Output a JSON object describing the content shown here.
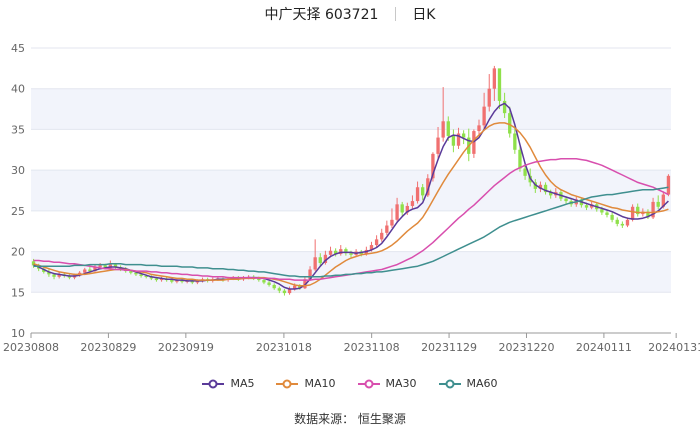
{
  "header": {
    "name": "中广天择",
    "code": "603721",
    "period": "日K"
  },
  "source": {
    "label": "数据来源：",
    "provider": "恒生聚源"
  },
  "chart_data": {
    "type": "candlestick-line",
    "yticks": [
      "10",
      "15",
      "20",
      "25",
      "30",
      "35",
      "40",
      "45"
    ],
    "ylim": [
      10,
      45
    ],
    "xticks": [
      "20230808",
      "20230829",
      "20230919",
      "20231018",
      "20231108",
      "20231129",
      "20231220",
      "20240111",
      "20240131"
    ],
    "xtick_index": [
      0,
      15,
      30,
      49,
      66,
      81,
      96,
      111,
      125
    ],
    "grid": true,
    "legend_position": "bottom",
    "up_color": "#f07070",
    "down_color": "#8fe04a",
    "series": [
      {
        "name": "MA5",
        "color": "#5a3a99",
        "values": [
          18.4,
          18.1,
          17.8,
          17.5,
          17.3,
          17.2,
          17.1,
          17.0,
          17.0,
          17.1,
          17.3,
          17.5,
          17.7,
          17.9,
          18.0,
          18.1,
          18.1,
          18.0,
          17.9,
          17.7,
          17.5,
          17.3,
          17.1,
          16.9,
          16.8,
          16.7,
          16.6,
          16.6,
          16.5,
          16.5,
          16.4,
          16.4,
          16.4,
          16.4,
          16.5,
          16.5,
          16.6,
          16.6,
          16.6,
          16.7,
          16.7,
          16.7,
          16.8,
          16.8,
          16.8,
          16.7,
          16.5,
          16.3,
          16.0,
          15.6,
          15.4,
          15.4,
          15.5,
          15.9,
          16.6,
          17.4,
          18.2,
          18.9,
          19.4,
          19.7,
          19.9,
          19.9,
          19.9,
          19.8,
          19.9,
          20.0,
          20.2,
          20.5,
          21.0,
          21.8,
          22.7,
          23.6,
          24.3,
          24.9,
          25.2,
          25.4,
          26.0,
          27.5,
          29.5,
          31.3,
          32.9,
          34.0,
          34.3,
          34.2,
          33.9,
          33.6,
          33.5,
          34.0,
          35.0,
          36.2,
          37.2,
          37.9,
          38.2,
          37.6,
          35.6,
          33.1,
          30.8,
          29.0,
          28.2,
          27.8,
          27.5,
          27.3,
          27.1,
          26.9,
          26.7,
          26.5,
          26.3,
          26.1,
          25.9,
          25.7,
          25.5,
          25.3,
          25.1,
          24.9,
          24.6,
          24.3,
          24.1,
          24.0,
          24.0,
          24.1,
          24.3,
          24.6,
          25.0,
          25.6,
          26.2
        ]
      },
      {
        "name": "MA10",
        "color": "#e08a3c",
        "values": [
          18.5,
          18.3,
          18.1,
          17.9,
          17.7,
          17.5,
          17.4,
          17.3,
          17.2,
          17.2,
          17.2,
          17.3,
          17.4,
          17.5,
          17.6,
          17.7,
          17.8,
          17.8,
          17.8,
          17.7,
          17.6,
          17.5,
          17.4,
          17.2,
          17.1,
          17.0,
          16.9,
          16.8,
          16.7,
          16.7,
          16.6,
          16.6,
          16.5,
          16.5,
          16.5,
          16.5,
          16.5,
          16.5,
          16.6,
          16.6,
          16.6,
          16.7,
          16.7,
          16.7,
          16.8,
          16.8,
          16.7,
          16.6,
          16.5,
          16.3,
          16.1,
          15.9,
          15.8,
          15.8,
          15.9,
          16.2,
          16.6,
          17.1,
          17.6,
          18.1,
          18.5,
          18.9,
          19.2,
          19.4,
          19.6,
          19.7,
          19.8,
          19.9,
          20.1,
          20.4,
          20.8,
          21.3,
          21.9,
          22.5,
          23.0,
          23.5,
          24.2,
          25.2,
          26.3,
          27.4,
          28.5,
          29.5,
          30.4,
          31.3,
          32.2,
          33.0,
          33.7,
          34.3,
          34.9,
          35.4,
          35.7,
          35.8,
          35.8,
          35.6,
          35.2,
          34.6,
          33.8,
          32.8,
          31.6,
          30.4,
          29.4,
          28.6,
          28.0,
          27.6,
          27.3,
          27.0,
          26.8,
          26.6,
          26.4,
          26.2,
          26.0,
          25.8,
          25.6,
          25.4,
          25.3,
          25.1,
          25.0,
          24.9,
          24.8,
          24.8,
          24.8,
          24.8,
          24.9,
          25.0,
          25.2
        ]
      },
      {
        "name": "MA30",
        "color": "#d84fae",
        "values": [
          18.9,
          18.9,
          18.8,
          18.8,
          18.7,
          18.7,
          18.6,
          18.5,
          18.5,
          18.4,
          18.3,
          18.2,
          18.1,
          18.0,
          17.9,
          17.9,
          17.8,
          17.8,
          17.7,
          17.7,
          17.6,
          17.6,
          17.6,
          17.5,
          17.5,
          17.4,
          17.4,
          17.3,
          17.3,
          17.2,
          17.2,
          17.1,
          17.1,
          17.0,
          17.0,
          16.9,
          16.9,
          16.9,
          16.8,
          16.8,
          16.8,
          16.8,
          16.8,
          16.8,
          16.7,
          16.7,
          16.7,
          16.7,
          16.6,
          16.6,
          16.6,
          16.5,
          16.5,
          16.5,
          16.5,
          16.6,
          16.6,
          16.7,
          16.8,
          16.9,
          17.0,
          17.1,
          17.2,
          17.3,
          17.4,
          17.5,
          17.6,
          17.7,
          17.8,
          18.0,
          18.2,
          18.4,
          18.7,
          19.0,
          19.3,
          19.7,
          20.1,
          20.6,
          21.1,
          21.7,
          22.3,
          22.9,
          23.5,
          24.1,
          24.6,
          25.2,
          25.7,
          26.3,
          26.9,
          27.5,
          28.1,
          28.6,
          29.1,
          29.6,
          30.0,
          30.3,
          30.6,
          30.8,
          31.0,
          31.1,
          31.2,
          31.3,
          31.3,
          31.4,
          31.4,
          31.4,
          31.4,
          31.3,
          31.2,
          31.0,
          30.8,
          30.6,
          30.3,
          30.0,
          29.7,
          29.4,
          29.1,
          28.8,
          28.5,
          28.3,
          28.1,
          27.9,
          27.6,
          27.3,
          27.0
        ]
      },
      {
        "name": "MA60",
        "color": "#3f8f8f",
        "values": [
          18.2,
          18.2,
          18.2,
          18.2,
          18.2,
          18.2,
          18.2,
          18.2,
          18.3,
          18.3,
          18.3,
          18.4,
          18.4,
          18.4,
          18.4,
          18.5,
          18.5,
          18.5,
          18.4,
          18.4,
          18.4,
          18.4,
          18.3,
          18.3,
          18.3,
          18.2,
          18.2,
          18.2,
          18.2,
          18.1,
          18.1,
          18.1,
          18.0,
          18.0,
          18.0,
          17.9,
          17.9,
          17.9,
          17.8,
          17.8,
          17.7,
          17.7,
          17.6,
          17.6,
          17.5,
          17.5,
          17.4,
          17.3,
          17.2,
          17.1,
          17.0,
          17.0,
          16.9,
          16.9,
          16.9,
          16.9,
          16.9,
          17.0,
          17.0,
          17.1,
          17.1,
          17.2,
          17.2,
          17.3,
          17.3,
          17.4,
          17.4,
          17.5,
          17.5,
          17.6,
          17.7,
          17.8,
          17.9,
          18.0,
          18.1,
          18.2,
          18.4,
          18.6,
          18.8,
          19.1,
          19.4,
          19.7,
          20.0,
          20.3,
          20.6,
          20.9,
          21.2,
          21.5,
          21.8,
          22.2,
          22.6,
          23.0,
          23.3,
          23.6,
          23.8,
          24.0,
          24.2,
          24.4,
          24.6,
          24.8,
          25.0,
          25.2,
          25.4,
          25.6,
          25.8,
          26.0,
          26.1,
          26.3,
          26.5,
          26.7,
          26.8,
          26.9,
          27.0,
          27.0,
          27.1,
          27.2,
          27.3,
          27.4,
          27.5,
          27.6,
          27.6,
          27.6,
          27.7,
          27.8,
          27.9
        ]
      }
    ],
    "candles": [
      [
        18.8,
        18.3,
        19.1,
        18.0
      ],
      [
        18.3,
        17.9,
        18.5,
        17.6
      ],
      [
        17.9,
        17.5,
        18.1,
        17.3
      ],
      [
        17.5,
        17.2,
        17.8,
        16.9
      ],
      [
        17.2,
        16.9,
        17.4,
        16.6
      ],
      [
        16.9,
        17.2,
        17.5,
        16.7
      ],
      [
        17.2,
        17.0,
        17.4,
        16.8
      ],
      [
        17.0,
        16.8,
        17.2,
        16.6
      ],
      [
        16.8,
        17.1,
        17.3,
        16.6
      ],
      [
        17.1,
        17.4,
        17.6,
        16.9
      ],
      [
        17.4,
        17.8,
        18.0,
        17.2
      ],
      [
        17.8,
        17.6,
        18.1,
        17.4
      ],
      [
        17.6,
        18.1,
        18.4,
        17.5
      ],
      [
        18.1,
        18.3,
        18.6,
        17.9
      ],
      [
        18.3,
        18.0,
        18.5,
        17.8
      ],
      [
        18.0,
        18.4,
        18.9,
        17.8
      ],
      [
        18.4,
        18.1,
        18.6,
        17.9
      ],
      [
        18.1,
        17.9,
        18.3,
        17.6
      ],
      [
        17.9,
        17.6,
        18.1,
        17.4
      ],
      [
        17.6,
        17.4,
        17.8,
        17.2
      ],
      [
        17.4,
        17.2,
        17.6,
        17.0
      ],
      [
        17.2,
        17.0,
        17.4,
        16.8
      ],
      [
        17.0,
        16.9,
        17.2,
        16.7
      ],
      [
        16.9,
        16.7,
        17.1,
        16.5
      ],
      [
        16.7,
        16.5,
        16.9,
        16.3
      ],
      [
        16.5,
        16.7,
        16.9,
        16.3
      ],
      [
        16.7,
        16.5,
        16.9,
        16.3
      ],
      [
        16.5,
        16.3,
        16.7,
        16.1
      ],
      [
        16.3,
        16.5,
        16.7,
        16.1
      ],
      [
        16.5,
        16.3,
        16.7,
        16.1
      ],
      [
        16.3,
        16.4,
        16.6,
        16.1
      ],
      [
        16.4,
        16.2,
        16.6,
        16.0
      ],
      [
        16.2,
        16.4,
        16.6,
        16.0
      ],
      [
        16.4,
        16.6,
        16.8,
        16.2
      ],
      [
        16.6,
        16.4,
        16.8,
        16.2
      ],
      [
        16.4,
        16.6,
        16.8,
        16.2
      ],
      [
        16.6,
        16.7,
        16.9,
        16.4
      ],
      [
        16.7,
        16.5,
        16.9,
        16.3
      ],
      [
        16.5,
        16.7,
        16.9,
        16.3
      ],
      [
        16.7,
        16.8,
        17.0,
        16.5
      ],
      [
        16.8,
        16.6,
        17.0,
        16.4
      ],
      [
        16.6,
        16.8,
        17.0,
        16.4
      ],
      [
        16.8,
        16.9,
        17.1,
        16.6
      ],
      [
        16.9,
        16.7,
        17.1,
        16.5
      ],
      [
        16.7,
        16.5,
        16.9,
        16.3
      ],
      [
        16.5,
        16.2,
        16.7,
        16.0
      ],
      [
        16.2,
        15.9,
        16.4,
        15.7
      ],
      [
        15.9,
        15.5,
        16.1,
        15.3
      ],
      [
        15.5,
        15.2,
        15.7,
        14.9
      ],
      [
        15.2,
        14.9,
        15.4,
        14.6
      ],
      [
        14.9,
        15.4,
        15.7,
        14.7
      ],
      [
        15.4,
        15.8,
        16.1,
        15.2
      ],
      [
        15.8,
        15.5,
        16.0,
        15.3
      ],
      [
        15.5,
        16.6,
        17.0,
        15.4
      ],
      [
        16.6,
        17.8,
        18.2,
        16.4
      ],
      [
        17.8,
        19.3,
        21.5,
        17.6
      ],
      [
        19.3,
        18.6,
        19.8,
        18.2
      ],
      [
        18.6,
        19.6,
        20.1,
        18.4
      ],
      [
        19.6,
        20.1,
        20.6,
        19.3
      ],
      [
        20.1,
        19.7,
        20.4,
        19.4
      ],
      [
        19.7,
        20.3,
        20.8,
        19.5
      ],
      [
        20.3,
        19.8,
        20.5,
        19.5
      ],
      [
        19.8,
        19.6,
        20.1,
        19.3
      ],
      [
        19.6,
        20.0,
        20.3,
        19.4
      ],
      [
        20.0,
        19.7,
        20.2,
        19.4
      ],
      [
        19.7,
        20.2,
        20.6,
        19.5
      ],
      [
        20.2,
        20.8,
        21.2,
        20.0
      ],
      [
        20.8,
        21.5,
        22.0,
        20.5
      ],
      [
        21.5,
        22.3,
        22.8,
        21.2
      ],
      [
        22.3,
        23.2,
        23.8,
        22.0
      ],
      [
        23.2,
        23.9,
        25.3,
        22.9
      ],
      [
        23.9,
        25.8,
        26.6,
        23.7
      ],
      [
        25.8,
        24.8,
        26.1,
        24.4
      ],
      [
        24.8,
        25.6,
        26.0,
        24.5
      ],
      [
        25.6,
        26.2,
        26.9,
        25.3
      ],
      [
        26.2,
        27.9,
        28.6,
        25.9
      ],
      [
        27.9,
        26.9,
        28.3,
        26.3
      ],
      [
        26.9,
        29.0,
        29.5,
        26.7
      ],
      [
        29.0,
        32.0,
        32.2,
        28.6
      ],
      [
        32.0,
        34.0,
        35.3,
        31.4
      ],
      [
        34.0,
        36.0,
        40.2,
        33.5
      ],
      [
        36.0,
        34.2,
        36.6,
        33.6
      ],
      [
        34.2,
        33.0,
        35.0,
        32.2
      ],
      [
        33.0,
        34.5,
        35.2,
        32.6
      ],
      [
        34.5,
        34.0,
        34.9,
        33.2
      ],
      [
        34.0,
        32.0,
        35.1,
        31.1
      ],
      [
        32.0,
        34.8,
        35.0,
        31.5
      ],
      [
        34.8,
        35.5,
        36.2,
        34.3
      ],
      [
        35.5,
        37.8,
        39.5,
        35.0
      ],
      [
        37.8,
        40.0,
        41.8,
        37.2
      ],
      [
        40.0,
        42.5,
        42.8,
        38.5
      ],
      [
        42.5,
        38.5,
        42.0,
        37.5
      ],
      [
        38.5,
        37.0,
        39.5,
        36.4
      ],
      [
        37.0,
        34.5,
        37.8,
        34.0
      ],
      [
        34.5,
        32.5,
        35.6,
        32.0
      ],
      [
        32.5,
        30.2,
        33.0,
        29.8
      ],
      [
        30.2,
        29.3,
        30.8,
        28.8
      ],
      [
        29.3,
        28.5,
        30.2,
        28.0
      ],
      [
        28.5,
        27.7,
        28.9,
        27.2
      ],
      [
        27.7,
        28.2,
        28.6,
        27.3
      ],
      [
        28.2,
        27.3,
        28.5,
        27.0
      ],
      [
        27.3,
        26.9,
        27.6,
        26.5
      ],
      [
        26.9,
        27.3,
        27.8,
        26.6
      ],
      [
        27.3,
        26.5,
        27.6,
        26.2
      ],
      [
        26.5,
        26.2,
        26.8,
        25.9
      ],
      [
        26.2,
        25.8,
        26.5,
        25.5
      ],
      [
        25.8,
        26.4,
        26.7,
        25.5
      ],
      [
        26.4,
        25.7,
        26.6,
        25.4
      ],
      [
        25.7,
        25.4,
        26.0,
        25.1
      ],
      [
        25.4,
        25.8,
        26.1,
        25.2
      ],
      [
        25.8,
        25.2,
        26.0,
        24.9
      ],
      [
        25.2,
        24.8,
        25.5,
        24.5
      ],
      [
        24.8,
        24.5,
        25.1,
        24.2
      ],
      [
        24.5,
        23.9,
        24.8,
        23.6
      ],
      [
        23.9,
        23.4,
        24.2,
        23.1
      ],
      [
        23.4,
        23.2,
        23.7,
        22.9
      ],
      [
        23.2,
        23.9,
        24.2,
        23.0
      ],
      [
        23.9,
        25.5,
        25.8,
        23.7
      ],
      [
        25.5,
        24.6,
        25.9,
        24.3
      ],
      [
        24.6,
        24.9,
        25.3,
        24.3
      ],
      [
        24.9,
        24.2,
        25.2,
        24.0
      ],
      [
        24.2,
        26.1,
        26.6,
        24.0
      ],
      [
        26.1,
        25.5,
        26.9,
        25.2
      ],
      [
        25.5,
        27.0,
        27.4,
        25.3
      ],
      [
        27.0,
        29.3,
        29.5,
        26.8
      ]
    ]
  }
}
